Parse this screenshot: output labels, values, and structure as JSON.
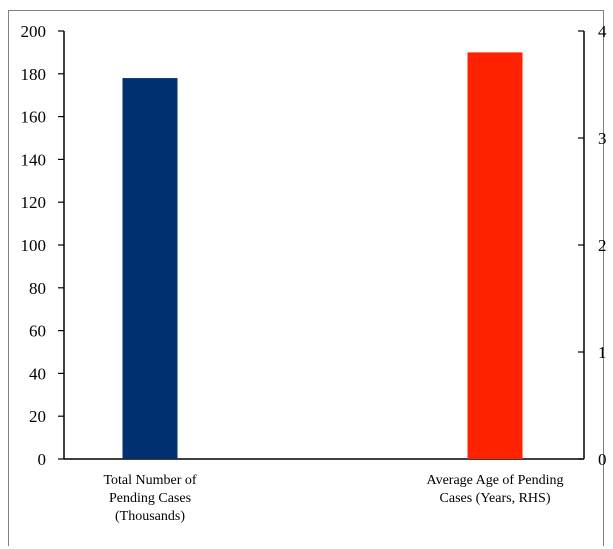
{
  "chart_data": {
    "type": "bar",
    "title": "",
    "xlabel": "",
    "categories": [
      [
        "Total Number of",
        "Pending Cases",
        "(Thousands)"
      ],
      [
        "Average Age of Pending",
        "Cases (Years, RHS)"
      ]
    ],
    "series": [
      {
        "category_index": 0,
        "axis": "left",
        "value": 178,
        "color": "#003070"
      },
      {
        "category_index": 1,
        "axis": "right",
        "value": 3.8,
        "color": "#ff2200"
      }
    ],
    "left_axis": {
      "ylim": [
        0,
        200
      ],
      "ticks": [
        0,
        20,
        40,
        60,
        80,
        100,
        120,
        140,
        160,
        180,
        200
      ]
    },
    "right_axis": {
      "ylim": [
        0,
        4
      ],
      "ticks": [
        0,
        1,
        2,
        3,
        4
      ]
    },
    "grid": false,
    "legend": "none"
  }
}
